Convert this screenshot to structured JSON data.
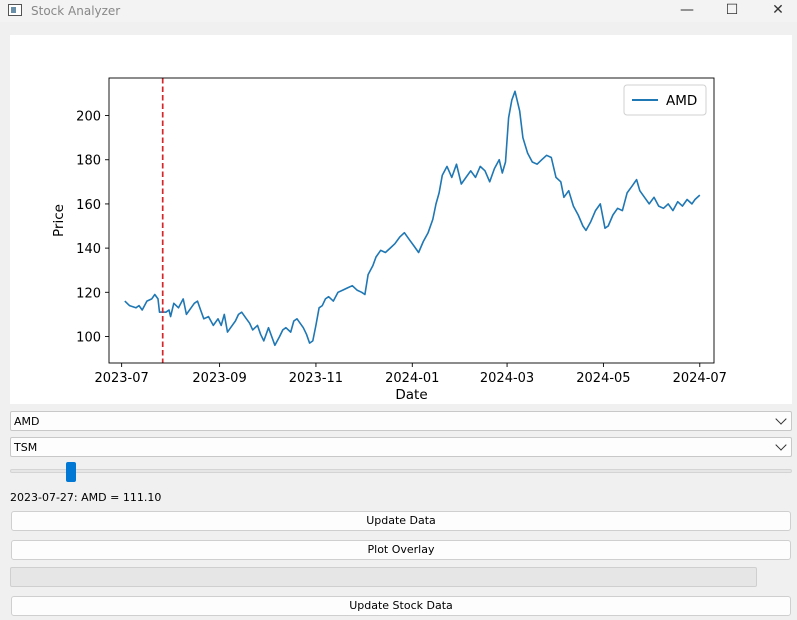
{
  "window": {
    "title": "Stock Analyzer",
    "minimize_glyph": "—",
    "maximize_glyph": "☐",
    "close_glyph": "✕"
  },
  "chart_data": {
    "type": "line",
    "xlabel": "Date",
    "ylabel": "Price",
    "xlim": [
      "2023-06-23",
      "2024-07-10"
    ],
    "ylim": [
      88,
      217
    ],
    "x_ticks": [
      "2023-07",
      "2023-09",
      "2023-11",
      "2024-01",
      "2024-03",
      "2024-05",
      "2024-07"
    ],
    "y_ticks": [
      100,
      120,
      140,
      160,
      180,
      200
    ],
    "legend": {
      "placement": "upper-right"
    },
    "vline": {
      "x": "2023-07-27",
      "color": "#d62728",
      "style": "dashed"
    },
    "series": [
      {
        "name": "AMD",
        "color": "#1f77b4",
        "points": [
          [
            "2023-07-03",
            116
          ],
          [
            "2023-07-06",
            114
          ],
          [
            "2023-07-10",
            113
          ],
          [
            "2023-07-12",
            114
          ],
          [
            "2023-07-14",
            112
          ],
          [
            "2023-07-17",
            116
          ],
          [
            "2023-07-20",
            117
          ],
          [
            "2023-07-22",
            119
          ],
          [
            "2023-07-24",
            117
          ],
          [
            "2023-07-25",
            111
          ],
          [
            "2023-07-27",
            111.1
          ],
          [
            "2023-07-29",
            111
          ],
          [
            "2023-07-31",
            112
          ],
          [
            "2023-08-01",
            109
          ],
          [
            "2023-08-03",
            115
          ],
          [
            "2023-08-06",
            113
          ],
          [
            "2023-08-09",
            117
          ],
          [
            "2023-08-11",
            110
          ],
          [
            "2023-08-14",
            113
          ],
          [
            "2023-08-16",
            115
          ],
          [
            "2023-08-18",
            116
          ],
          [
            "2023-08-20",
            112
          ],
          [
            "2023-08-22",
            108
          ],
          [
            "2023-08-25",
            109
          ],
          [
            "2023-08-28",
            105
          ],
          [
            "2023-08-31",
            108
          ],
          [
            "2023-09-02",
            105
          ],
          [
            "2023-09-04",
            110
          ],
          [
            "2023-09-06",
            102
          ],
          [
            "2023-09-08",
            104
          ],
          [
            "2023-09-11",
            107
          ],
          [
            "2023-09-13",
            110
          ],
          [
            "2023-09-15",
            111
          ],
          [
            "2023-09-18",
            108
          ],
          [
            "2023-09-20",
            106
          ],
          [
            "2023-09-22",
            103
          ],
          [
            "2023-09-25",
            105
          ],
          [
            "2023-09-27",
            101
          ],
          [
            "2023-09-29",
            98
          ],
          [
            "2023-10-02",
            104
          ],
          [
            "2023-10-03",
            102
          ],
          [
            "2023-10-06",
            96
          ],
          [
            "2023-10-09",
            100
          ],
          [
            "2023-10-11",
            103
          ],
          [
            "2023-10-13",
            104
          ],
          [
            "2023-10-16",
            102
          ],
          [
            "2023-10-18",
            107
          ],
          [
            "2023-10-20",
            108
          ],
          [
            "2023-10-22",
            106
          ],
          [
            "2023-10-24",
            104
          ],
          [
            "2023-10-26",
            101
          ],
          [
            "2023-10-28",
            97
          ],
          [
            "2023-10-30",
            98
          ],
          [
            "2023-11-01",
            105
          ],
          [
            "2023-11-03",
            113
          ],
          [
            "2023-11-05",
            114
          ],
          [
            "2023-11-07",
            117
          ],
          [
            "2023-11-09",
            118
          ],
          [
            "2023-11-12",
            116
          ],
          [
            "2023-11-15",
            120
          ],
          [
            "2023-11-18",
            121
          ],
          [
            "2023-11-21",
            122
          ],
          [
            "2023-11-24",
            123
          ],
          [
            "2023-11-27",
            121
          ],
          [
            "2023-11-30",
            120
          ],
          [
            "2023-12-02",
            119
          ],
          [
            "2023-12-04",
            128
          ],
          [
            "2023-12-07",
            132
          ],
          [
            "2023-12-09",
            136
          ],
          [
            "2023-12-12",
            139
          ],
          [
            "2023-12-15",
            138
          ],
          [
            "2023-12-18",
            140
          ],
          [
            "2023-12-21",
            142
          ],
          [
            "2023-12-24",
            145
          ],
          [
            "2023-12-27",
            147
          ],
          [
            "2023-12-30",
            144
          ],
          [
            "2024-01-02",
            141
          ],
          [
            "2024-01-05",
            138
          ],
          [
            "2024-01-08",
            143
          ],
          [
            "2024-01-11",
            147
          ],
          [
            "2024-01-14",
            153
          ],
          [
            "2024-01-16",
            160
          ],
          [
            "2024-01-18",
            165
          ],
          [
            "2024-01-20",
            173
          ],
          [
            "2024-01-23",
            177
          ],
          [
            "2024-01-26",
            172
          ],
          [
            "2024-01-29",
            178
          ],
          [
            "2024-02-01",
            169
          ],
          [
            "2024-02-04",
            172
          ],
          [
            "2024-02-07",
            175
          ],
          [
            "2024-02-10",
            172
          ],
          [
            "2024-02-13",
            177
          ],
          [
            "2024-02-16",
            175
          ],
          [
            "2024-02-19",
            170
          ],
          [
            "2024-02-22",
            176
          ],
          [
            "2024-02-25",
            180
          ],
          [
            "2024-02-27",
            174
          ],
          [
            "2024-02-29",
            179
          ],
          [
            "2024-03-02",
            199
          ],
          [
            "2024-03-04",
            207
          ],
          [
            "2024-03-06",
            211
          ],
          [
            "2024-03-09",
            202
          ],
          [
            "2024-03-11",
            190
          ],
          [
            "2024-03-14",
            183
          ],
          [
            "2024-03-17",
            179
          ],
          [
            "2024-03-20",
            178
          ],
          [
            "2024-03-23",
            180
          ],
          [
            "2024-03-26",
            182
          ],
          [
            "2024-03-29",
            181
          ],
          [
            "2024-04-01",
            172
          ],
          [
            "2024-04-04",
            170
          ],
          [
            "2024-04-06",
            163
          ],
          [
            "2024-04-09",
            166
          ],
          [
            "2024-04-12",
            159
          ],
          [
            "2024-04-15",
            155
          ],
          [
            "2024-04-18",
            150
          ],
          [
            "2024-04-20",
            148
          ],
          [
            "2024-04-23",
            152
          ],
          [
            "2024-04-26",
            157
          ],
          [
            "2024-04-29",
            160
          ],
          [
            "2024-05-02",
            149
          ],
          [
            "2024-05-04",
            150
          ],
          [
            "2024-05-07",
            155
          ],
          [
            "2024-05-10",
            158
          ],
          [
            "2024-05-13",
            157
          ],
          [
            "2024-05-16",
            165
          ],
          [
            "2024-05-19",
            168
          ],
          [
            "2024-05-22",
            171
          ],
          [
            "2024-05-24",
            166
          ],
          [
            "2024-05-27",
            163
          ],
          [
            "2024-05-30",
            160
          ],
          [
            "2024-06-02",
            163
          ],
          [
            "2024-06-05",
            159
          ],
          [
            "2024-06-08",
            158
          ],
          [
            "2024-06-11",
            160
          ],
          [
            "2024-06-14",
            157
          ],
          [
            "2024-06-17",
            161
          ],
          [
            "2024-06-20",
            159
          ],
          [
            "2024-06-23",
            162
          ],
          [
            "2024-06-26",
            160
          ],
          [
            "2024-06-28",
            162
          ],
          [
            "2024-07-01",
            164
          ]
        ]
      }
    ]
  },
  "controls": {
    "primary_symbol": "AMD",
    "overlay_symbol": "TSM",
    "slider_value": 0.072,
    "status_text": "2023-07-27: AMD = 111.10",
    "update_data_label": "Update Data",
    "plot_overlay_label": "Plot Overlay",
    "progress_value": 0,
    "update_stock_label": "Update Stock Data"
  }
}
